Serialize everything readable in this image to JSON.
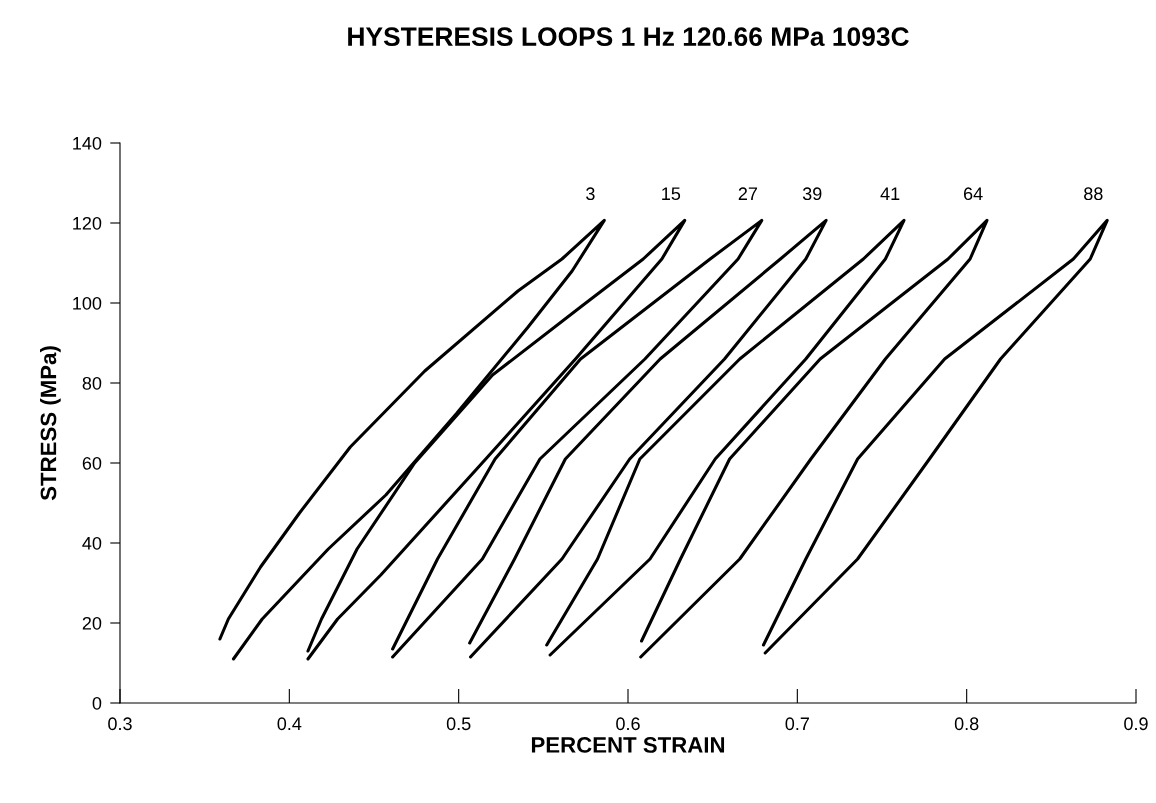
{
  "chart_data": {
    "type": "line",
    "title": "HYSTERESIS LOOPS 1 Hz 120.66 MPa 1093C",
    "xlabel": "PERCENT STRAIN",
    "ylabel": "STRESS (MPa)",
    "xlim": [
      0.3,
      0.9
    ],
    "xticks": [
      0.3,
      0.4,
      0.5,
      0.6,
      0.7,
      0.8,
      0.9
    ],
    "ylim": [
      0,
      140
    ],
    "yticks": [
      0,
      20,
      40,
      60,
      80,
      100,
      120,
      140
    ],
    "grid": false,
    "legend": false,
    "marker": "none",
    "line_style": "solid",
    "series": [
      {
        "name": "3",
        "color": "#000000",
        "x": [
          0.359,
          0.364,
          0.383,
          0.406,
          0.436,
          0.48,
          0.535,
          0.561,
          0.586,
          0.567,
          0.541,
          0.499,
          0.457,
          0.423,
          0.384,
          0.367
        ],
        "values": [
          16,
          21,
          34,
          47.5,
          64,
          83,
          103,
          111,
          120.66,
          108,
          94,
          72.5,
          52,
          38.5,
          21,
          11
        ]
      },
      {
        "name": "15",
        "color": "#000000",
        "x": [
          0.411,
          0.419,
          0.44,
          0.474,
          0.52,
          0.572,
          0.609,
          0.6335,
          0.62,
          0.569,
          0.516,
          0.454,
          0.4285,
          0.411
        ],
        "values": [
          13,
          21,
          38.5,
          60,
          82,
          99,
          111,
          120.66,
          111,
          86,
          61,
          32,
          21,
          11
        ]
      },
      {
        "name": "27",
        "color": "#000000",
        "x": [
          0.461,
          0.4875,
          0.5215,
          0.572,
          0.6485,
          0.679,
          0.665,
          0.61,
          0.548,
          0.514,
          0.461
        ],
        "values": [
          13.5,
          36,
          61,
          86,
          111,
          120.66,
          111,
          86,
          61,
          36,
          11.5
        ]
      },
      {
        "name": "39",
        "color": "#000000",
        "x": [
          0.5065,
          0.533,
          0.563,
          0.619,
          0.69,
          0.717,
          0.705,
          0.657,
          0.601,
          0.561,
          0.507
        ],
        "values": [
          15,
          36,
          61,
          86,
          111,
          120.66,
          111,
          86,
          61,
          36,
          11.5
        ]
      },
      {
        "name": "41",
        "color": "#000000",
        "x": [
          0.552,
          0.582,
          0.607,
          0.666,
          0.739,
          0.763,
          0.752,
          0.705,
          0.6515,
          0.613,
          0.554
        ],
        "values": [
          14.5,
          36,
          61,
          86,
          111,
          120.66,
          111,
          86,
          61,
          36,
          12
        ]
      },
      {
        "name": "64",
        "color": "#000000",
        "x": [
          0.608,
          0.631,
          0.66,
          0.7135,
          0.789,
          0.812,
          0.802,
          0.752,
          0.708,
          0.666,
          0.6075
        ],
        "values": [
          15.5,
          36,
          61,
          86,
          111,
          120.66,
          111,
          86,
          61,
          36,
          11.5
        ]
      },
      {
        "name": "88",
        "color": "#000000",
        "x": [
          0.68,
          0.705,
          0.7356,
          0.787,
          0.863,
          0.883,
          0.873,
          0.82,
          0.778,
          0.7356,
          0.681
        ],
        "values": [
          14.5,
          36,
          61,
          86,
          111,
          120.66,
          111,
          86,
          61,
          36,
          12.5
        ]
      }
    ]
  }
}
